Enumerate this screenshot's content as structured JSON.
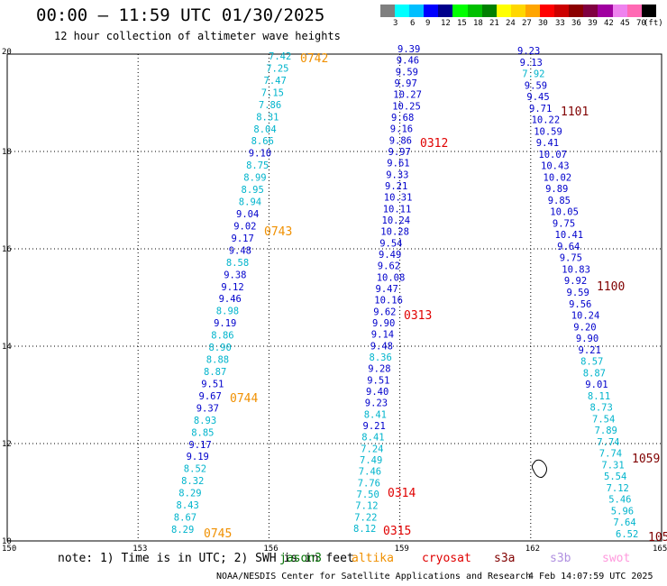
{
  "title": "00:00 — 11:59 UTC 01/30/2025",
  "subtitle": "12 hour collection of altimeter wave heights",
  "legend": {
    "unit": "(ft)",
    "colors": [
      "#7f7f7f",
      "#00ffff",
      "#00bfff",
      "#0000ff",
      "#00008b",
      "#00ff00",
      "#00c000",
      "#008000",
      "#ffff00",
      "#ffd700",
      "#ffa500",
      "#ff0000",
      "#cc0000",
      "#8b0000",
      "#800040",
      "#a000a0",
      "#ee82ee",
      "#ff69b4",
      "#000000"
    ],
    "labels": [
      "3",
      "6",
      "9",
      "12",
      "15",
      "18",
      "21",
      "24",
      "27",
      "30",
      "33",
      "36",
      "39",
      "42",
      "45",
      "70"
    ]
  },
  "axes": {
    "x_ticks": [
      "150",
      "153",
      "156",
      "159",
      "162",
      "165"
    ],
    "y_ticks": [
      "10",
      "12",
      "14",
      "16",
      "18",
      "20"
    ]
  },
  "colors": {
    "light": "#00b4cc",
    "dark": "#0000cc",
    "pass_orange": "#f09000",
    "pass_red": "#e00000",
    "pass_maroon": "#800000",
    "land": "#000000"
  },
  "passes": [
    {
      "label": "0742",
      "color": "orange"
    },
    {
      "label": "0743",
      "color": "orange"
    },
    {
      "label": "0744",
      "color": "orange"
    },
    {
      "label": "0745",
      "color": "orange"
    },
    {
      "label": "0312",
      "color": "red"
    },
    {
      "label": "0313",
      "color": "red"
    },
    {
      "label": "0314",
      "color": "red"
    },
    {
      "label": "0315",
      "color": "red"
    },
    {
      "label": "1101",
      "color": "maroon"
    },
    {
      "label": "1100",
      "color": "maroon"
    },
    {
      "label": "1059",
      "color": "maroon"
    },
    {
      "label": "105",
      "color": "maroon"
    }
  ],
  "tracks": [
    {
      "name": "track-1",
      "points": [
        [
          "7.42",
          "L"
        ],
        [
          "7.25",
          "L"
        ],
        [
          "7.47",
          "L"
        ],
        [
          "7.15",
          "L"
        ],
        [
          "7.86",
          "L"
        ],
        [
          "8.31",
          "L"
        ],
        [
          "8.04",
          "L"
        ],
        [
          "8.66",
          "L"
        ],
        [
          "9.10",
          "D"
        ],
        [
          "8.75",
          "L"
        ],
        [
          "8.99",
          "L"
        ],
        [
          "8.95",
          "L"
        ],
        [
          "8.94",
          "L"
        ],
        [
          "9.04",
          "D"
        ],
        [
          "9.02",
          "D"
        ],
        [
          "9.17",
          "D"
        ],
        [
          "9.48",
          "D"
        ],
        [
          "8.58",
          "L"
        ],
        [
          "9.38",
          "D"
        ],
        [
          "9.12",
          "D"
        ],
        [
          "9.46",
          "D"
        ],
        [
          "8.98",
          "L"
        ],
        [
          "9.19",
          "D"
        ],
        [
          "8.86",
          "L"
        ],
        [
          "8.90",
          "L"
        ],
        [
          "8.88",
          "L"
        ],
        [
          "8.87",
          "L"
        ],
        [
          "9.51",
          "D"
        ],
        [
          "9.67",
          "D"
        ],
        [
          "9.37",
          "D"
        ],
        [
          "8.93",
          "L"
        ],
        [
          "8.85",
          "L"
        ],
        [
          "9.17",
          "D"
        ],
        [
          "9.19",
          "D"
        ],
        [
          "8.52",
          "L"
        ],
        [
          "8.32",
          "L"
        ],
        [
          "8.29",
          "L"
        ],
        [
          "8.43",
          "L"
        ],
        [
          "8.67",
          "L"
        ],
        [
          "8.29",
          "L"
        ]
      ]
    },
    {
      "name": "track-2",
      "points": [
        [
          "9.39",
          "D"
        ],
        [
          "9.46",
          "D"
        ],
        [
          "9.59",
          "D"
        ],
        [
          "9.97",
          "D"
        ],
        [
          "10.27",
          "D"
        ],
        [
          "10.25",
          "D"
        ],
        [
          "9.68",
          "D"
        ],
        [
          "9.16",
          "D"
        ],
        [
          "9.86",
          "D"
        ],
        [
          "9.97",
          "D"
        ],
        [
          "9.61",
          "D"
        ],
        [
          "9.33",
          "D"
        ],
        [
          "9.21",
          "D"
        ],
        [
          "10.31",
          "D"
        ],
        [
          "10.11",
          "D"
        ],
        [
          "10.24",
          "D"
        ],
        [
          "10.28",
          "D"
        ],
        [
          "9.54",
          "D"
        ],
        [
          "9.49",
          "D"
        ],
        [
          "9.62",
          "D"
        ],
        [
          "10.08",
          "D"
        ],
        [
          "9.47",
          "D"
        ],
        [
          "10.16",
          "D"
        ],
        [
          "9.62",
          "D"
        ],
        [
          "9.90",
          "D"
        ],
        [
          "9.14",
          "D"
        ],
        [
          "9.48",
          "D"
        ],
        [
          "8.36",
          "L"
        ],
        [
          "9.28",
          "D"
        ],
        [
          "9.51",
          "D"
        ],
        [
          "9.40",
          "D"
        ],
        [
          "9.23",
          "D"
        ],
        [
          "8.41",
          "L"
        ],
        [
          "9.21",
          "D"
        ],
        [
          "8.41",
          "L"
        ],
        [
          "7.24",
          "L"
        ],
        [
          "7.49",
          "L"
        ],
        [
          "7.46",
          "L"
        ],
        [
          "7.76",
          "L"
        ],
        [
          "7.50",
          "L"
        ],
        [
          "7.12",
          "L"
        ],
        [
          "7.22",
          "L"
        ],
        [
          "8.12",
          "L"
        ]
      ]
    },
    {
      "name": "track-3",
      "points": [
        [
          "9.23",
          "D"
        ],
        [
          "9.13",
          "D"
        ],
        [
          "7.92",
          "L"
        ],
        [
          "9.59",
          "D"
        ],
        [
          "9.45",
          "D"
        ],
        [
          "9.71",
          "D"
        ],
        [
          "10.22",
          "D"
        ],
        [
          "10.59",
          "D"
        ],
        [
          "9.41",
          "D"
        ],
        [
          "10.07",
          "D"
        ],
        [
          "10.43",
          "D"
        ],
        [
          "10.02",
          "D"
        ],
        [
          "9.89",
          "D"
        ],
        [
          "9.85",
          "D"
        ],
        [
          "10.05",
          "D"
        ],
        [
          "9.75",
          "D"
        ],
        [
          "10.41",
          "D"
        ],
        [
          "9.64",
          "D"
        ],
        [
          "9.75",
          "D"
        ],
        [
          "10.83",
          "D"
        ],
        [
          "9.92",
          "D"
        ],
        [
          "9.59",
          "D"
        ],
        [
          "9.56",
          "D"
        ],
        [
          "10.24",
          "D"
        ],
        [
          "9.20",
          "D"
        ],
        [
          "9.90",
          "D"
        ],
        [
          "9.21",
          "D"
        ],
        [
          "8.57",
          "L"
        ],
        [
          "8.87",
          "L"
        ],
        [
          "9.01",
          "D"
        ],
        [
          "8.11",
          "L"
        ],
        [
          "8.73",
          "L"
        ],
        [
          "7.54",
          "L"
        ],
        [
          "7.89",
          "L"
        ],
        [
          "7.74",
          "L"
        ],
        [
          "7.74",
          "L"
        ],
        [
          "7.31",
          "L"
        ],
        [
          "5.54",
          "L"
        ],
        [
          "7.12",
          "L"
        ],
        [
          "5.46",
          "L"
        ],
        [
          "5.96",
          "L"
        ],
        [
          "7.64",
          "L"
        ],
        [
          "6.52",
          "L"
        ]
      ]
    }
  ],
  "notes": {
    "prefix": "note:  1) Time is in UTC; 2) SWH is in feet",
    "satellites": [
      {
        "name": "jason3",
        "color": "#007000"
      },
      {
        "name": "altika",
        "color": "#f09000"
      },
      {
        "name": "cryosat",
        "color": "#e00000"
      },
      {
        "name": "s3a",
        "color": "#800000"
      },
      {
        "name": "s3b",
        "color": "#b090e0"
      },
      {
        "name": "swot",
        "color": "#ff99dd"
      }
    ]
  },
  "footer": {
    "center": "NOAA/NESDIS Center for Satellite Applications and Research",
    "time": "4 Feb 14:07:59 UTC 2025"
  }
}
